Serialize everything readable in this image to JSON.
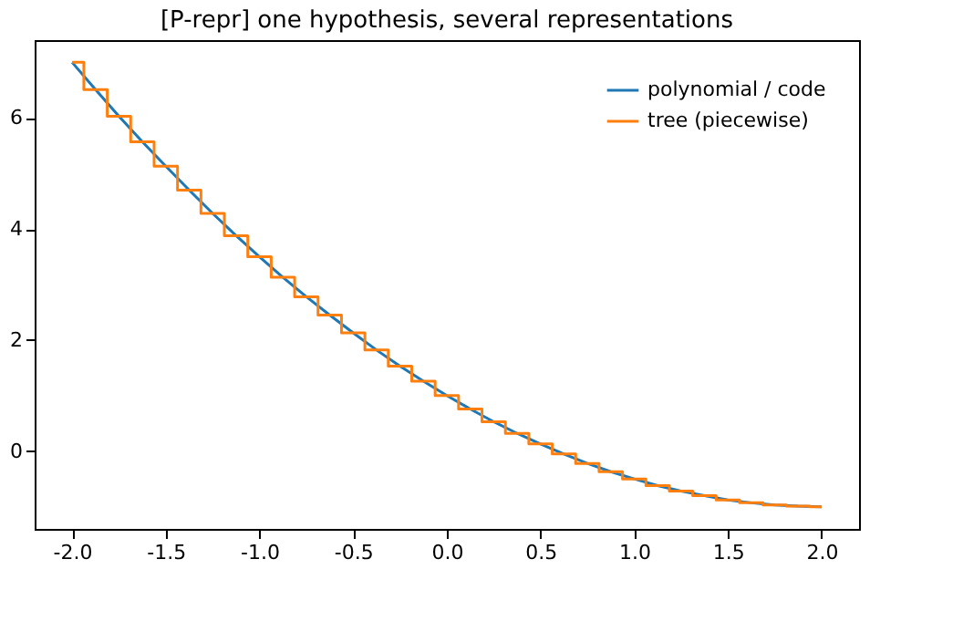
{
  "chart_data": {
    "type": "line",
    "title": "[P-repr] one hypothesis, several representations",
    "x": [
      -2,
      -1.875,
      -1.75,
      -1.625,
      -1.5,
      -1.375,
      -1.25,
      -1.125,
      -1,
      -0.875,
      -0.75,
      -0.625,
      -0.5,
      -0.375,
      -0.25,
      -0.125,
      0,
      0.125,
      0.25,
      0.375,
      0.5,
      0.625,
      0.75,
      0.875,
      1,
      1.125,
      1.25,
      1.375,
      1.5,
      1.625,
      1.75,
      1.875,
      2
    ],
    "series": [
      {
        "name": "polynomial / code",
        "color": "#1f77b4",
        "values": [
          7,
          6.51,
          6.03,
          5.57,
          5.13,
          4.7,
          4.28,
          3.88,
          3.5,
          3.13,
          2.78,
          2.45,
          2.13,
          1.82,
          1.53,
          1.26,
          1,
          0.76,
          0.53,
          0.32,
          0.13,
          -0.05,
          -0.22,
          -0.37,
          -0.5,
          -0.62,
          -0.72,
          -0.8,
          -0.88,
          -0.93,
          -0.97,
          -0.99,
          -1
        ]
      },
      {
        "name": "tree (piecewise)",
        "color": "#ff7f0e",
        "type": "step",
        "values": [
          7,
          6.51,
          6.03,
          5.57,
          5.13,
          4.7,
          4.28,
          3.88,
          3.5,
          3.13,
          2.78,
          2.45,
          2.13,
          1.82,
          1.53,
          1.26,
          1,
          0.76,
          0.53,
          0.32,
          0.13,
          -0.05,
          -0.22,
          -0.37,
          -0.5,
          -0.62,
          -0.72,
          -0.8,
          -0.88,
          -0.93,
          -0.97,
          -0.99,
          -1
        ]
      }
    ],
    "xlim": [
      -2.2,
      2.2
    ],
    "xticks": [
      {
        "value": -2,
        "label": "-2.0"
      },
      {
        "value": -1.5,
        "label": "-1.5"
      },
      {
        "value": -1,
        "label": "-1.0"
      },
      {
        "value": -0.5,
        "label": "-0.5"
      },
      {
        "value": 0,
        "label": "0.0"
      },
      {
        "value": 0.5,
        "label": "0.5"
      },
      {
        "value": 1,
        "label": "1.0"
      },
      {
        "value": 1.5,
        "label": "1.5"
      },
      {
        "value": 2,
        "label": "2.0"
      }
    ],
    "ylim": [
      -1.4,
      7.4
    ],
    "yticks": [
      0,
      2,
      4,
      6
    ],
    "grid": false,
    "legend": "top right"
  }
}
